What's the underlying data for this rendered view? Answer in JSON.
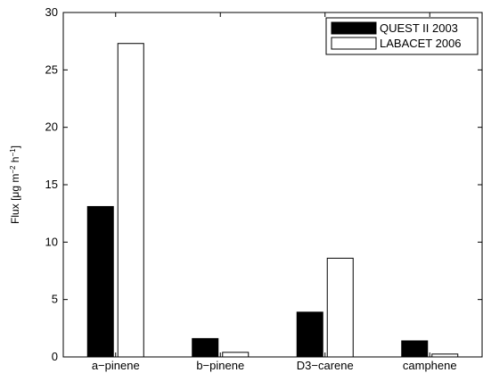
{
  "chart_data": {
    "type": "bar",
    "categories": [
      "a−pinene",
      "b−pinene",
      "D3−carene",
      "camphene"
    ],
    "series": [
      {
        "name": "QUEST II  2003",
        "values": [
          13.1,
          1.6,
          3.9,
          1.4
        ],
        "color": "#000000"
      },
      {
        "name": "LABACET  2006",
        "values": [
          27.3,
          0.4,
          8.6,
          0.25
        ],
        "color": "#ffffff"
      }
    ],
    "ylabel": "Flux [μg m^-2 h^-1]",
    "ylabel_parts": {
      "base": "Flux [μg m",
      "exp1": "−2",
      "mid": " h",
      "exp2": "−1",
      "end": "]"
    },
    "ylim": [
      0,
      30
    ],
    "yticks": [
      0,
      5,
      10,
      15,
      20,
      25,
      30
    ],
    "legend_position": "top-right",
    "grid": false
  }
}
